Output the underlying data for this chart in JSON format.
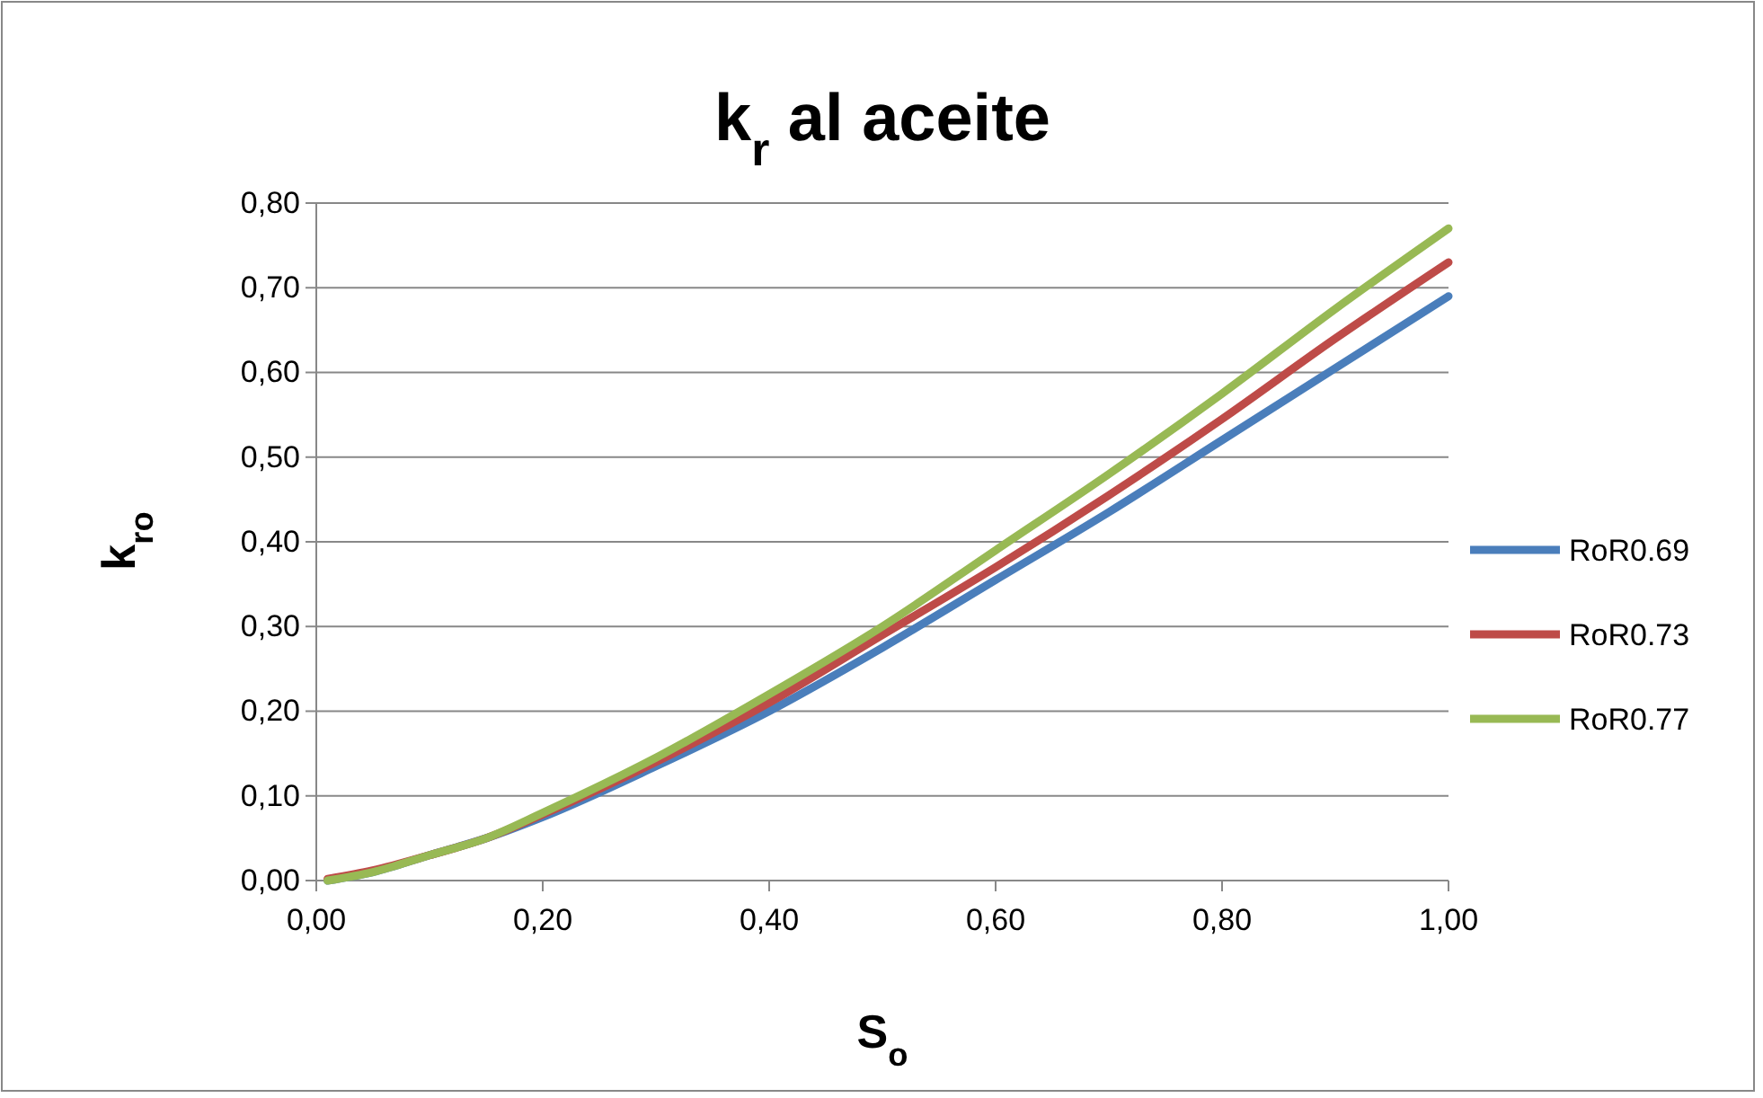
{
  "chart_data": {
    "type": "line",
    "title": "k$_{r}$ al aceite",
    "xlabel": "S$_{o}$",
    "ylabel": "k$_{ro}$",
    "x": [
      0.01,
      0.05,
      0.1,
      0.15,
      0.2,
      0.3,
      0.4,
      0.5,
      0.6,
      0.7,
      0.8,
      0.9,
      1.0
    ],
    "series": [
      {
        "name": "RoR0.69",
        "color": "#4a7ebb",
        "values": [
          0,
          0.01,
          0.03,
          0.05,
          0.075,
          0.135,
          0.2,
          0.275,
          0.355,
          0.435,
          0.52,
          0.605,
          0.69
        ]
      },
      {
        "name": "RoR0.73",
        "color": "#be4b48",
        "values": [
          0.002,
          0.012,
          0.03,
          0.05,
          0.078,
          0.14,
          0.21,
          0.29,
          0.37,
          0.455,
          0.545,
          0.64,
          0.73
        ]
      },
      {
        "name": "RoR0.77",
        "color": "#98b954",
        "values": [
          0,
          0.01,
          0.03,
          0.05,
          0.08,
          0.145,
          0.22,
          0.3,
          0.39,
          0.48,
          0.575,
          0.675,
          0.77
        ]
      }
    ],
    "xlim": [
      0,
      1
    ],
    "ylim": [
      0,
      0.8
    ],
    "xticks": [
      {
        "value": 0,
        "label": "0,00"
      },
      {
        "value": 0.2,
        "label": "0,20"
      },
      {
        "value": 0.4,
        "label": "0,40"
      },
      {
        "value": 0.6,
        "label": "0,60"
      },
      {
        "value": 0.8,
        "label": "0,80"
      },
      {
        "value": 1,
        "label": "1,00"
      }
    ],
    "yticks": [
      {
        "value": 0,
        "label": "0,00"
      },
      {
        "value": 0.1,
        "label": "0,10"
      },
      {
        "value": 0.2,
        "label": "0,20"
      },
      {
        "value": 0.3,
        "label": "0,30"
      },
      {
        "value": 0.4,
        "label": "0,40"
      },
      {
        "value": 0.5,
        "label": "0,50"
      },
      {
        "value": 0.6,
        "label": "0,60"
      },
      {
        "value": 0.7,
        "label": "0,70"
      },
      {
        "value": 0.8,
        "label": "0,80"
      }
    ],
    "grid": "y",
    "legend": "right",
    "marker": "none",
    "line_style": "solid"
  }
}
